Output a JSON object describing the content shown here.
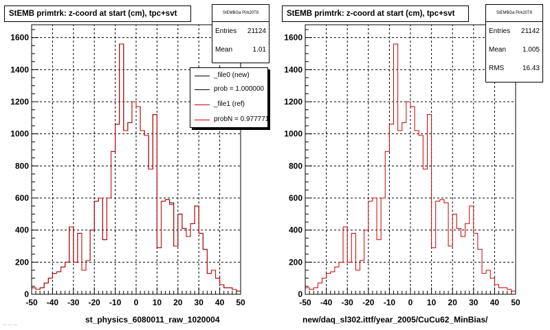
{
  "footer_text": "... ... ...",
  "chart_data": [
    {
      "type": "histogram",
      "title": "StEMB primtrk: z-coord at start (cm), tpc+svt",
      "xlabel": "st_physics_6080011_raw_1020004",
      "ylabel": "",
      "xlim": [
        -50,
        50
      ],
      "ylim": [
        0,
        1680
      ],
      "xticks": [
        -50,
        -40,
        -30,
        -20,
        -10,
        0,
        10,
        20,
        30,
        40,
        50
      ],
      "yticks": [
        0,
        200,
        400,
        600,
        800,
        1000,
        1200,
        1400,
        1600
      ],
      "grid": true,
      "bin_edges": [
        -50,
        -48,
        -46,
        -44,
        -42,
        -40,
        -38,
        -36,
        -34,
        -32,
        -30,
        -28,
        -26,
        -24,
        -22,
        -20,
        -18,
        -16,
        -14,
        -12,
        -10,
        -8,
        -6,
        -4,
        -2,
        0,
        2,
        4,
        6,
        8,
        10,
        12,
        14,
        16,
        18,
        20,
        22,
        24,
        26,
        28,
        30,
        32,
        34,
        36,
        38,
        40,
        42,
        44,
        46,
        48,
        50
      ],
      "stats": {
        "header": "StEMBGa Pirk20T8",
        "rows": [
          {
            "label": "Entries",
            "value": "21124"
          },
          {
            "label": "Mean",
            "value": "1.01"
          }
        ]
      },
      "legend": {
        "placement": "top-right",
        "entries": [
          {
            "label": "_file0 (new)",
            "color": "#000000"
          },
          {
            "label": "prob = 1.000000",
            "color": "#000000"
          },
          {
            "label": "_file1 (ref)",
            "color": "#cc0000"
          },
          {
            "label": "probN = 0.977771",
            "color": "#cc0000"
          }
        ]
      },
      "series": [
        {
          "color": "#000000",
          "values": [
            40,
            30,
            40,
            70,
            100,
            130,
            140,
            170,
            200,
            420,
            200,
            380,
            150,
            210,
            400,
            580,
            600,
            340,
            600,
            890,
            1060,
            1560,
            1020,
            1070,
            1200,
            1170,
            1020,
            990,
            780,
            1120,
            290,
            580,
            590,
            570,
            300,
            500,
            410,
            360,
            440,
            550,
            380,
            280,
            130,
            150,
            100,
            60,
            40,
            40,
            30,
            20
          ]
        },
        {
          "color": "#cc0000",
          "values": [
            40,
            30,
            40,
            70,
            100,
            130,
            140,
            170,
            200,
            420,
            200,
            380,
            150,
            210,
            400,
            580,
            600,
            340,
            600,
            890,
            1060,
            1560,
            1020,
            1070,
            1200,
            1170,
            1020,
            990,
            780,
            1120,
            290,
            580,
            590,
            560,
            300,
            500,
            410,
            360,
            440,
            550,
            380,
            280,
            130,
            150,
            100,
            60,
            40,
            40,
            30,
            20
          ]
        }
      ]
    },
    {
      "type": "histogram",
      "title": "StEMB primtrk: z-coord at start (cm), tpc+svt",
      "xlabel": "new/daq_sl302.ittf/year_2005/CuCu62_MinBias/",
      "ylabel": "",
      "xlim": [
        -50,
        50
      ],
      "ylim": [
        0,
        1680
      ],
      "xticks": [
        -50,
        -40,
        -30,
        -20,
        -10,
        0,
        10,
        20,
        30,
        40,
        50
      ],
      "yticks": [
        0,
        200,
        400,
        600,
        800,
        1000,
        1200,
        1400,
        1600
      ],
      "grid": true,
      "bin_edges": [
        -50,
        -48,
        -46,
        -44,
        -42,
        -40,
        -38,
        -36,
        -34,
        -32,
        -30,
        -28,
        -26,
        -24,
        -22,
        -20,
        -18,
        -16,
        -14,
        -12,
        -10,
        -8,
        -6,
        -4,
        -2,
        0,
        2,
        4,
        6,
        8,
        10,
        12,
        14,
        16,
        18,
        20,
        22,
        24,
        26,
        28,
        30,
        32,
        34,
        36,
        38,
        40,
        42,
        44,
        46,
        48,
        50
      ],
      "stats": {
        "header": "StEMBGa Pirk20T8",
        "rows": [
          {
            "label": "Entries",
            "value": "21142"
          },
          {
            "label": "Mean",
            "value": "1.005"
          },
          {
            "label": "RMS",
            "value": "16.43"
          }
        ]
      },
      "series": [
        {
          "color": "#cc0000",
          "values": [
            40,
            30,
            40,
            70,
            100,
            130,
            140,
            170,
            200,
            420,
            200,
            380,
            150,
            210,
            400,
            580,
            600,
            340,
            600,
            890,
            1060,
            1560,
            1020,
            1070,
            1200,
            1170,
            1020,
            990,
            780,
            1120,
            290,
            580,
            590,
            570,
            300,
            500,
            410,
            360,
            440,
            550,
            380,
            280,
            130,
            150,
            100,
            60,
            40,
            40,
            30,
            20
          ]
        }
      ]
    }
  ]
}
